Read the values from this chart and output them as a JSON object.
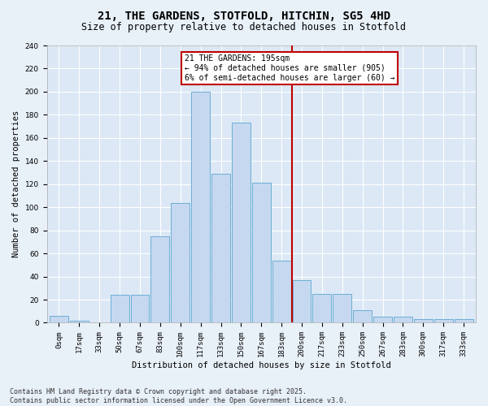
{
  "title": "21, THE GARDENS, STOTFOLD, HITCHIN, SG5 4HD",
  "subtitle": "Size of property relative to detached houses in Stotfold",
  "xlabel": "Distribution of detached houses by size in Stotfold",
  "ylabel": "Number of detached properties",
  "bins": [
    "0sqm",
    "17sqm",
    "33sqm",
    "50sqm",
    "67sqm",
    "83sqm",
    "100sqm",
    "117sqm",
    "133sqm",
    "150sqm",
    "167sqm",
    "183sqm",
    "200sqm",
    "217sqm",
    "233sqm",
    "250sqm",
    "267sqm",
    "283sqm",
    "300sqm",
    "317sqm",
    "333sqm"
  ],
  "values": [
    6,
    2,
    0,
    24,
    24,
    75,
    104,
    200,
    129,
    173,
    121,
    54,
    37,
    25,
    25,
    11,
    5,
    5,
    3,
    3,
    3
  ],
  "bar_color": "#c5d8ef",
  "bar_edge_color": "#6baed6",
  "vline_color": "#c00000",
  "annotation_text": "21 THE GARDENS: 195sqm\n← 94% of detached houses are smaller (905)\n6% of semi-detached houses are larger (60) →",
  "annotation_box_color": "#c00000",
  "ylim": [
    0,
    240
  ],
  "yticks": [
    0,
    20,
    40,
    60,
    80,
    100,
    120,
    140,
    160,
    180,
    200,
    220,
    240
  ],
  "background_color": "#e8f0f8",
  "plot_bg_color": "#dce8f5",
  "footer": "Contains HM Land Registry data © Crown copyright and database right 2025.\nContains public sector information licensed under the Open Government Licence v3.0.",
  "title_fontsize": 10,
  "subtitle_fontsize": 8.5,
  "axis_label_fontsize": 7.5,
  "tick_fontsize": 6.5,
  "annotation_fontsize": 7,
  "footer_fontsize": 6
}
